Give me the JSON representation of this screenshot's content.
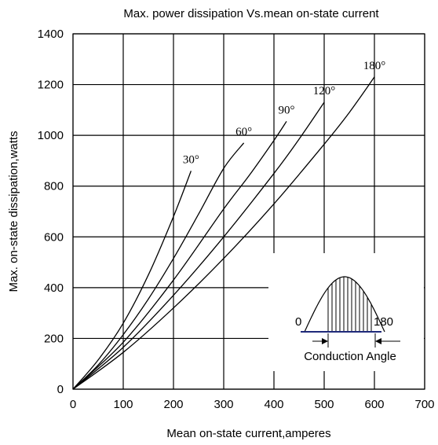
{
  "chart_data": {
    "type": "line",
    "title": "Max. power dissipation Vs.mean on-state current",
    "xlabel": "Mean on-state current,amperes",
    "ylabel": "Max. on-state dissipation,watts",
    "xlim": [
      0,
      700
    ],
    "ylim": [
      0,
      1400
    ],
    "xticks": [
      0,
      100,
      200,
      300,
      400,
      500,
      600,
      700
    ],
    "yticks": [
      0,
      200,
      400,
      600,
      800,
      1000,
      1200,
      1400
    ],
    "grid": true,
    "series": [
      {
        "name": "30°",
        "x": [
          0,
          50,
          100,
          150,
          200,
          235
        ],
        "y": [
          0,
          115,
          260,
          450,
          680,
          860
        ]
      },
      {
        "name": "60°",
        "x": [
          0,
          50,
          100,
          150,
          200,
          250,
          300,
          340
        ],
        "y": [
          0,
          95,
          215,
          355,
          515,
          690,
          870,
          970
        ]
      },
      {
        "name": "90°",
        "x": [
          0,
          100,
          200,
          300,
          350,
          400,
          425
        ],
        "y": [
          0,
          185,
          430,
          710,
          840,
          980,
          1055
        ]
      },
      {
        "name": "120°",
        "x": [
          0,
          100,
          200,
          300,
          400,
          450,
          500
        ],
        "y": [
          0,
          165,
          370,
          600,
          850,
          985,
          1130
        ]
      },
      {
        "name": "180°",
        "x": [
          0,
          100,
          200,
          300,
          400,
          500,
          550,
          600
        ],
        "y": [
          0,
          145,
          320,
          515,
          730,
          965,
          1090,
          1230
        ]
      }
    ]
  },
  "inset": {
    "zero_label": "0",
    "end_label": "180",
    "caption": "Conduction Angle"
  }
}
